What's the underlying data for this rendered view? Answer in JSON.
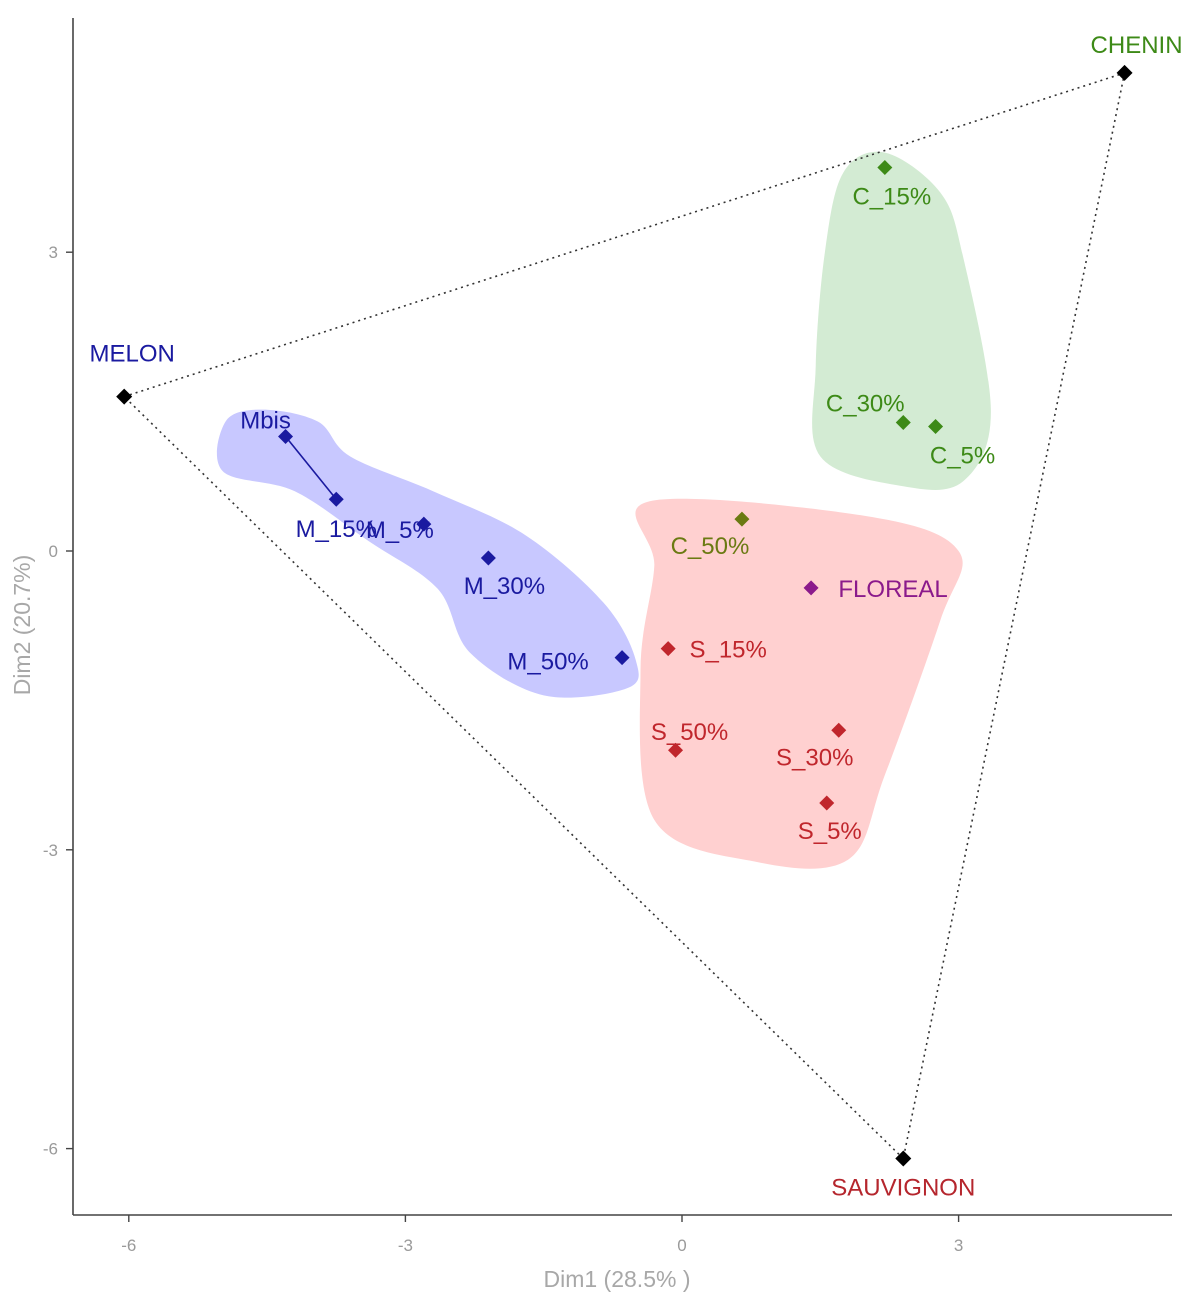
{
  "chart_data": {
    "type": "scatter",
    "title": "",
    "xlabel": "Dim1 (28.5% )",
    "ylabel": "Dim2 (20.7%)",
    "xlim": [
      -6.6,
      5.3
    ],
    "ylim": [
      -6.6,
      5.3
    ],
    "xticks": [
      -6,
      -3,
      0,
      3
    ],
    "yticks": [
      -6,
      -3,
      0,
      3
    ],
    "grid": false,
    "legend": "none",
    "colors": {
      "melon": "#1a1aa0",
      "chenin": "#3d8a17",
      "sauvignon": "#c0262c",
      "c50": "#6b7a12",
      "floreal": "#8b1a8b",
      "anchor": "#000000",
      "melon_hull": "#c8c8ff",
      "chenin_hull": "#d3ebd3",
      "sauvignon_hull": "#ffd0d0"
    },
    "anchors": [
      {
        "label": "MELON",
        "x": -6.05,
        "y": 1.55,
        "color": "#1a1aa0"
      },
      {
        "label": "CHENIN",
        "x": 4.8,
        "y": 4.8,
        "color": "#3d8a17"
      },
      {
        "label": "SAUVIGNON",
        "x": 2.4,
        "y": -6.1,
        "color": "#b5262d"
      }
    ],
    "points": [
      {
        "label": "Mbis",
        "x": -4.3,
        "y": 1.15,
        "color": "#1a1aa0"
      },
      {
        "label": "M_15%",
        "x": -3.75,
        "y": 0.52,
        "color": "#1a1aa0"
      },
      {
        "label": "M_5%",
        "x": -2.8,
        "y": 0.27,
        "color": "#1a1aa0"
      },
      {
        "label": "M_30%",
        "x": -2.1,
        "y": -0.07,
        "color": "#1a1aa0"
      },
      {
        "label": "M_50%",
        "x": -0.65,
        "y": -1.07,
        "color": "#1a1aa0"
      },
      {
        "label": "C_15%",
        "x": 2.2,
        "y": 3.85,
        "color": "#3d8a17"
      },
      {
        "label": "C_30%",
        "x": 2.4,
        "y": 1.29,
        "color": "#3d8a17"
      },
      {
        "label": "C_5%",
        "x": 2.75,
        "y": 1.25,
        "color": "#3d8a17"
      },
      {
        "label": "C_50%",
        "x": 0.65,
        "y": 0.32,
        "color": "#6b7a12"
      },
      {
        "label": "FLOREAL",
        "x": 1.4,
        "y": -0.37,
        "color": "#8b1a8b"
      },
      {
        "label": "S_15%",
        "x": -0.15,
        "y": -0.98,
        "color": "#c0262c"
      },
      {
        "label": "S_50%",
        "x": -0.07,
        "y": -2.0,
        "color": "#c0262c"
      },
      {
        "label": "S_30%",
        "x": 1.7,
        "y": -1.8,
        "color": "#c0262c"
      },
      {
        "label": "S_5%",
        "x": 1.57,
        "y": -2.53,
        "color": "#c0262c"
      }
    ],
    "hulls": [
      {
        "group": "Melon",
        "color": "#c8c8ff",
        "points": [
          [
            -4.55,
            1.42
          ],
          [
            -3.95,
            1.3
          ],
          [
            -3.6,
            0.95
          ],
          [
            -2.7,
            0.6
          ],
          [
            -1.7,
            0.16
          ],
          [
            -0.85,
            -0.52
          ],
          [
            -0.5,
            -1.1
          ],
          [
            -0.6,
            -1.38
          ],
          [
            -1.5,
            -1.45
          ],
          [
            -2.3,
            -1.02
          ],
          [
            -2.65,
            -0.38
          ],
          [
            -3.4,
            0.1
          ],
          [
            -4.2,
            0.6
          ],
          [
            -4.98,
            0.8
          ],
          [
            -4.95,
            1.3
          ]
        ]
      },
      {
        "group": "Chenin",
        "color": "#d3ebd3",
        "points": [
          [
            2.2,
            4.0
          ],
          [
            2.8,
            3.6
          ],
          [
            3.05,
            2.95
          ],
          [
            3.35,
            1.4
          ],
          [
            3.05,
            0.7
          ],
          [
            2.4,
            0.65
          ],
          [
            1.5,
            0.95
          ],
          [
            1.45,
            1.85
          ],
          [
            1.55,
            3.0
          ],
          [
            1.75,
            3.8
          ]
        ]
      },
      {
        "group": "Sauvignon",
        "color": "#ffd0d0",
        "points": [
          [
            -0.35,
            0.5
          ],
          [
            2.0,
            0.35
          ],
          [
            3.0,
            0.0
          ],
          [
            2.8,
            -0.7
          ],
          [
            2.2,
            -2.25
          ],
          [
            1.8,
            -3.1
          ],
          [
            0.8,
            -3.12
          ],
          [
            -0.3,
            -2.7
          ],
          [
            -0.45,
            -1.2
          ],
          [
            -0.3,
            -0.15
          ]
        ]
      }
    ],
    "triangle": [
      "MELON",
      "CHENIN",
      "SAUVIGNON"
    ],
    "connector": [
      "Mbis",
      "M_15%"
    ]
  }
}
